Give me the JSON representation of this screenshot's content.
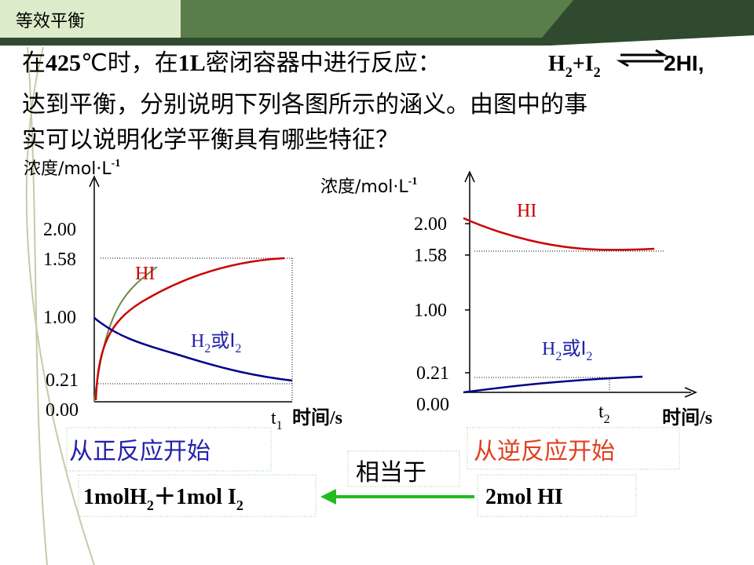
{
  "header": {
    "title": "等效平衡"
  },
  "question": {
    "line1": [
      "在",
      "425",
      "℃时，在",
      "1L",
      "密闭容器中进行反应："
    ],
    "equation": [
      "H",
      "2",
      "+I",
      "2",
      "2HI,"
    ],
    "line2": "达到平衡，分别说明下列各图所示的涵义。由图中的事",
    "line3": "实可以说明化学平衡具有哪些特征？"
  },
  "charts": [
    {
      "ylabel": [
        "浓度/mol·L",
        "-1"
      ],
      "yticks": [
        "2.00",
        "1.58",
        "1.00",
        "0.21",
        "0.00"
      ],
      "time_marker": [
        "t",
        "1"
      ],
      "xlabel": "时间/s",
      "series_labels": [
        "HI",
        [
          "H",
          "2",
          "或I",
          "2"
        ]
      ],
      "caption": "从正反应开始"
    },
    {
      "ylabel": [
        "浓度/mol·L",
        "-1"
      ],
      "yticks": [
        "2.00",
        "1.58",
        "1.00",
        "0.21",
        "0.00"
      ],
      "time_marker": [
        "t",
        "2"
      ],
      "xlabel": "时间/s",
      "series_labels": [
        "HI",
        [
          "H",
          "2",
          "或I",
          "2"
        ]
      ],
      "caption": "从逆反应开始"
    }
  ],
  "relation": "相当于",
  "left_box": [
    "1molH",
    "2",
    "＋1mol  I",
    "2"
  ],
  "right_box": "2mol  HI"
}
